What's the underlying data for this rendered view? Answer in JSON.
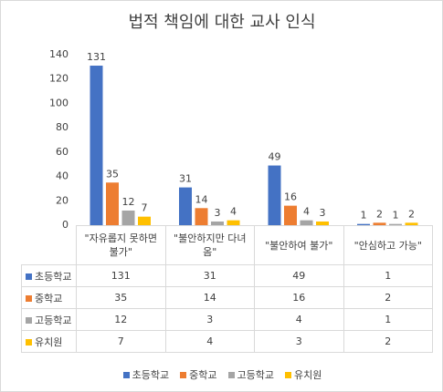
{
  "chart_data": {
    "type": "bar",
    "title": "법적 책임에 대한 교사 인식",
    "categories": [
      "\"자유롭지 못하면 불가\"",
      "\"불안하지만 다녀옴\"",
      "\"불안하여 불가\"",
      "\"안심하고 가능\""
    ],
    "series": [
      {
        "name": "초등학교",
        "color": "#4472c4",
        "values": [
          131,
          31,
          49,
          1
        ]
      },
      {
        "name": "중학교",
        "color": "#ed7d31",
        "values": [
          35,
          14,
          16,
          2
        ]
      },
      {
        "name": "고등학교",
        "color": "#a5a5a5",
        "values": [
          12,
          3,
          4,
          1
        ]
      },
      {
        "name": "유치원",
        "color": "#ffc000",
        "values": [
          7,
          4,
          3,
          2
        ]
      }
    ],
    "ylim": [
      0,
      140
    ],
    "yticks": [
      0,
      20,
      40,
      60,
      80,
      100,
      120,
      140
    ],
    "grid": false,
    "legend": "bottom"
  }
}
